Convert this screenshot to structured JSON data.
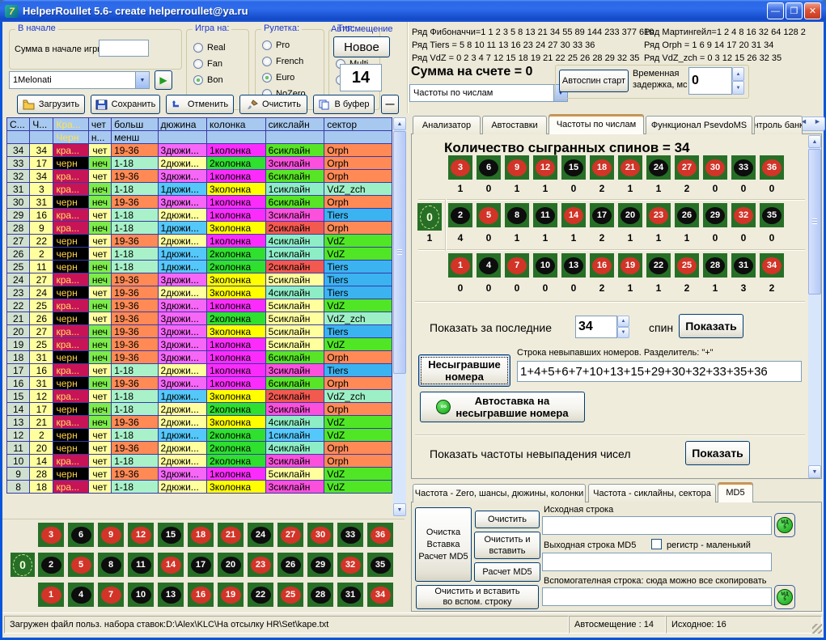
{
  "titlebar": {
    "title": "HelperRoullet 5.6- create helperroullet@ya.ru"
  },
  "controls": {
    "start_group": {
      "caption": "В начале",
      "label": "Сумма в начале игры",
      "value": ""
    },
    "preset": {
      "value": "1Melonati"
    },
    "groups": [
      {
        "caption": "Игра на:",
        "options": [
          "Real",
          "Fan",
          "Bon"
        ],
        "selected": 2
      },
      {
        "caption": "Рулетка:",
        "options": [
          "Pro",
          "French",
          "Euro",
          "NoZero"
        ],
        "selected": 2
      },
      {
        "caption": "Тип:",
        "options": [
          "Singl",
          "Multi",
          "Live"
        ],
        "selected": 0
      }
    ],
    "autoshift": {
      "caption": "Автосмещение",
      "button_label": "Новое",
      "value": "14"
    }
  },
  "series": {
    "left": [
      "Ряд Фибоначчи=1 1 2 3 5 8 13 21 34 55 89 144 233 377 610",
      "Ряд Tiers = 5 8 10 11 13 16 23 24 27 30 33 36",
      "Ряд VdZ = 0 2 3 4 7 12 15 18 19 21 22 25 26 28 29 32 35"
    ],
    "right": [
      "Ряд Мартингейл=1 2 4 8 16 32 64 128 2",
      "Ряд Orph = 1 6 9 14 17 20 31 34",
      "Ряд VdZ_zch = 0 3 12 15 26 32 35"
    ]
  },
  "account": {
    "sum_label": "Сумма на счете = 0",
    "mode_dropdown": "Частоты по числам",
    "autospin_label": "Автоспин старт",
    "delay_label_1": "Временная",
    "delay_label_2": "задержка, мс",
    "delay_value": "0"
  },
  "toolbar": {
    "load": "Загрузить",
    "save": "Сохранить",
    "undo": "Отменить",
    "clear": "Очистить",
    "buffer": "В буфер",
    "collapse": "—"
  },
  "history_table": {
    "headers_line1": [
      "С...",
      "Ч...",
      "Кра...",
      "чет",
      "больш",
      "дюжина",
      "колонка",
      "сикслайн",
      "сектор"
    ],
    "headers_line2": [
      "",
      "",
      "Черн",
      "н...",
      "менш",
      "",
      "",
      "",
      ""
    ],
    "rows": [
      [
        34,
        34,
        "кра...",
        "чет",
        "19-36",
        "3дюжи...",
        "1колонка",
        "6сиклайн",
        "Orph",
        "g"
      ],
      [
        33,
        17,
        "черн",
        "неч",
        "1-18",
        "2дюжи...",
        "2колонка",
        "3сиклайн",
        "Orph",
        "m"
      ],
      [
        32,
        34,
        "кра...",
        "чет",
        "19-36",
        "3дюжи...",
        "1колонка",
        "6сиклайн",
        "Orph",
        "g"
      ],
      [
        31,
        3,
        "кра...",
        "неч",
        "1-18",
        "1дюжи...",
        "3колонка",
        "1сиклайн",
        "VdZ_zch",
        "a"
      ],
      [
        30,
        31,
        "черн",
        "неч",
        "19-36",
        "3дюжи...",
        "1колонка",
        "6сиклайн",
        "Orph",
        "g"
      ],
      [
        29,
        16,
        "кра...",
        "чет",
        "1-18",
        "2дюжи...",
        "1колонка",
        "3сиклайн",
        "Tiers",
        "m"
      ],
      [
        28,
        9,
        "кра...",
        "неч",
        "1-18",
        "1дюжи...",
        "3колонка",
        "2сиклайн",
        "Orph",
        "r"
      ],
      [
        27,
        22,
        "черн",
        "чет",
        "19-36",
        "2дюжи...",
        "1колонка",
        "4сиклайн",
        "VdZ",
        "a"
      ],
      [
        26,
        2,
        "черн",
        "чет",
        "1-18",
        "1дюжи...",
        "2колонка",
        "1сиклайн",
        "VdZ",
        "a"
      ],
      [
        25,
        11,
        "черн",
        "неч",
        "1-18",
        "1дюжи...",
        "2колонка",
        "2сиклайн",
        "Tiers",
        "r"
      ],
      [
        24,
        27,
        "кра...",
        "неч",
        "19-36",
        "3дюжи...",
        "3колонка",
        "5сиклайн",
        "Tiers",
        "y"
      ],
      [
        23,
        24,
        "черн",
        "чет",
        "19-36",
        "2дюжи...",
        "3колонка",
        "4сиклайн",
        "Tiers",
        "a"
      ],
      [
        22,
        25,
        "кра...",
        "неч",
        "19-36",
        "3дюжи...",
        "1колонка",
        "5сиклайн",
        "VdZ",
        "y"
      ],
      [
        21,
        26,
        "черн",
        "чет",
        "19-36",
        "3дюжи...",
        "2колонка",
        "5сиклайн",
        "VdZ_zch",
        "y"
      ],
      [
        20,
        27,
        "кра...",
        "неч",
        "19-36",
        "3дюжи...",
        "3колонка",
        "5сиклайн",
        "Tiers",
        "y"
      ],
      [
        19,
        25,
        "кра...",
        "неч",
        "19-36",
        "3дюжи...",
        "1колонка",
        "5сиклайн",
        "VdZ",
        "y"
      ],
      [
        18,
        31,
        "черн",
        "неч",
        "19-36",
        "3дюжи...",
        "1колонка",
        "6сиклайн",
        "Orph",
        "g"
      ],
      [
        17,
        16,
        "кра...",
        "чет",
        "1-18",
        "2дюжи...",
        "1колонка",
        "3сиклайн",
        "Tiers",
        "m"
      ],
      [
        16,
        31,
        "черн",
        "неч",
        "19-36",
        "3дюжи...",
        "1колонка",
        "6сиклайн",
        "Orph",
        "g"
      ],
      [
        15,
        12,
        "кра...",
        "чет",
        "1-18",
        "1дюжи...",
        "3колонка",
        "2сиклайн",
        "VdZ_zch",
        "r"
      ],
      [
        14,
        17,
        "черн",
        "неч",
        "1-18",
        "2дюжи...",
        "2колонка",
        "3сиклайн",
        "Orph",
        "m"
      ],
      [
        13,
        21,
        "кра...",
        "неч",
        "19-36",
        "2дюжи...",
        "3колонка",
        "4сиклайн",
        "VdZ",
        "a"
      ],
      [
        12,
        2,
        "черн",
        "чет",
        "1-18",
        "1дюжи...",
        "2колонка",
        "1сиклайн",
        "VdZ",
        "b"
      ],
      [
        11,
        20,
        "черн",
        "чет",
        "19-36",
        "2дюжи...",
        "2колонка",
        "4сиклайн",
        "Orph",
        "a"
      ],
      [
        10,
        14,
        "кра...",
        "чет",
        "1-18",
        "2дюжи...",
        "2колонка",
        "3сиклайн",
        "Orph",
        "m"
      ],
      [
        9,
        28,
        "черн",
        "чет",
        "19-36",
        "3дюжи...",
        "1колонка",
        "5сиклайн",
        "VdZ",
        "y"
      ],
      [
        8,
        18,
        "кра...",
        "чет",
        "1-18",
        "2дюжи...",
        "3колонка",
        "3сиклайн",
        "VdZ",
        "m"
      ]
    ]
  },
  "board": {
    "zero": "0",
    "rows": [
      [
        3,
        6,
        9,
        12,
        15,
        18,
        21,
        24,
        27,
        30,
        33,
        36
      ],
      [
        2,
        5,
        8,
        11,
        14,
        17,
        20,
        23,
        26,
        29,
        32,
        35
      ],
      [
        1,
        4,
        7,
        10,
        13,
        16,
        19,
        22,
        25,
        28,
        31,
        34
      ]
    ],
    "red_numbers": [
      1,
      3,
      5,
      7,
      9,
      12,
      14,
      16,
      18,
      19,
      21,
      23,
      25,
      27,
      30,
      32,
      34,
      36
    ]
  },
  "tabs": {
    "items": [
      "Анализатор",
      "Автоставки",
      "Частоты по числам",
      "Функционал PsevdoMS",
      "Контроль банкро"
    ],
    "active": 2
  },
  "freq_panel": {
    "heading": "Количество сыгранных спинов = 34",
    "zero_count": "1",
    "counts": [
      [
        1,
        0,
        1,
        1,
        0,
        2,
        1,
        1,
        2,
        0,
        0,
        0
      ],
      [
        4,
        0,
        1,
        1,
        1,
        2,
        1,
        1,
        1,
        0,
        0,
        0
      ],
      [
        0,
        0,
        0,
        0,
        0,
        2,
        1,
        1,
        2,
        1,
        3,
        2
      ]
    ],
    "last_label": "Показать за последние",
    "last_value": "34",
    "spin_label": "спин",
    "show_button": "Показать",
    "missed_button": "Несыгравшие номера",
    "missed_caption": "Строка невыпавших номеров. Разделитель: \"+\"",
    "missed_value": "1+4+5+6+7+10+13+15+29+30+32+33+35+36",
    "autobet_button_1": "Автоставка на",
    "autobet_button_2": "несыгравшие номера",
    "freq_missing_label": "Показать частоты невыпадения чисел",
    "freq_missing_button": "Показать"
  },
  "bottom_tabs": {
    "items": [
      "Частота - Zero, шансы, дюжины, колонки",
      "Частота - сиклайны, сектора",
      "MD5"
    ],
    "active": 2
  },
  "md5": {
    "big_button_1": "Очистка",
    "big_button_2": "Вставка",
    "big_button_3": "Расчет MD5",
    "clear": "Очистить",
    "clear_paste_1": "Очистить и",
    "clear_paste_2": "вставить",
    "calc": "Расчет MD5",
    "clear_aux_1": "Очистить и  вставить",
    "clear_aux_2": "во вспом. строку",
    "source_label": "Исходная строка",
    "out_label": "Выходная строка MD5",
    "case_label": "регистр  - маленький",
    "aux_label": "Вспомогателная строка: сюда можно все скопировать",
    "source_value": "",
    "out_value": "",
    "aux_value": ""
  },
  "statusbar": {
    "file": "Загружен файл польз. набора ставок:D:\\Alex\\KLC\\На отсылку HR\\Set\\kape.txt",
    "autoshift": "Автосмещение : 14",
    "initial": "Исходное: 16"
  }
}
